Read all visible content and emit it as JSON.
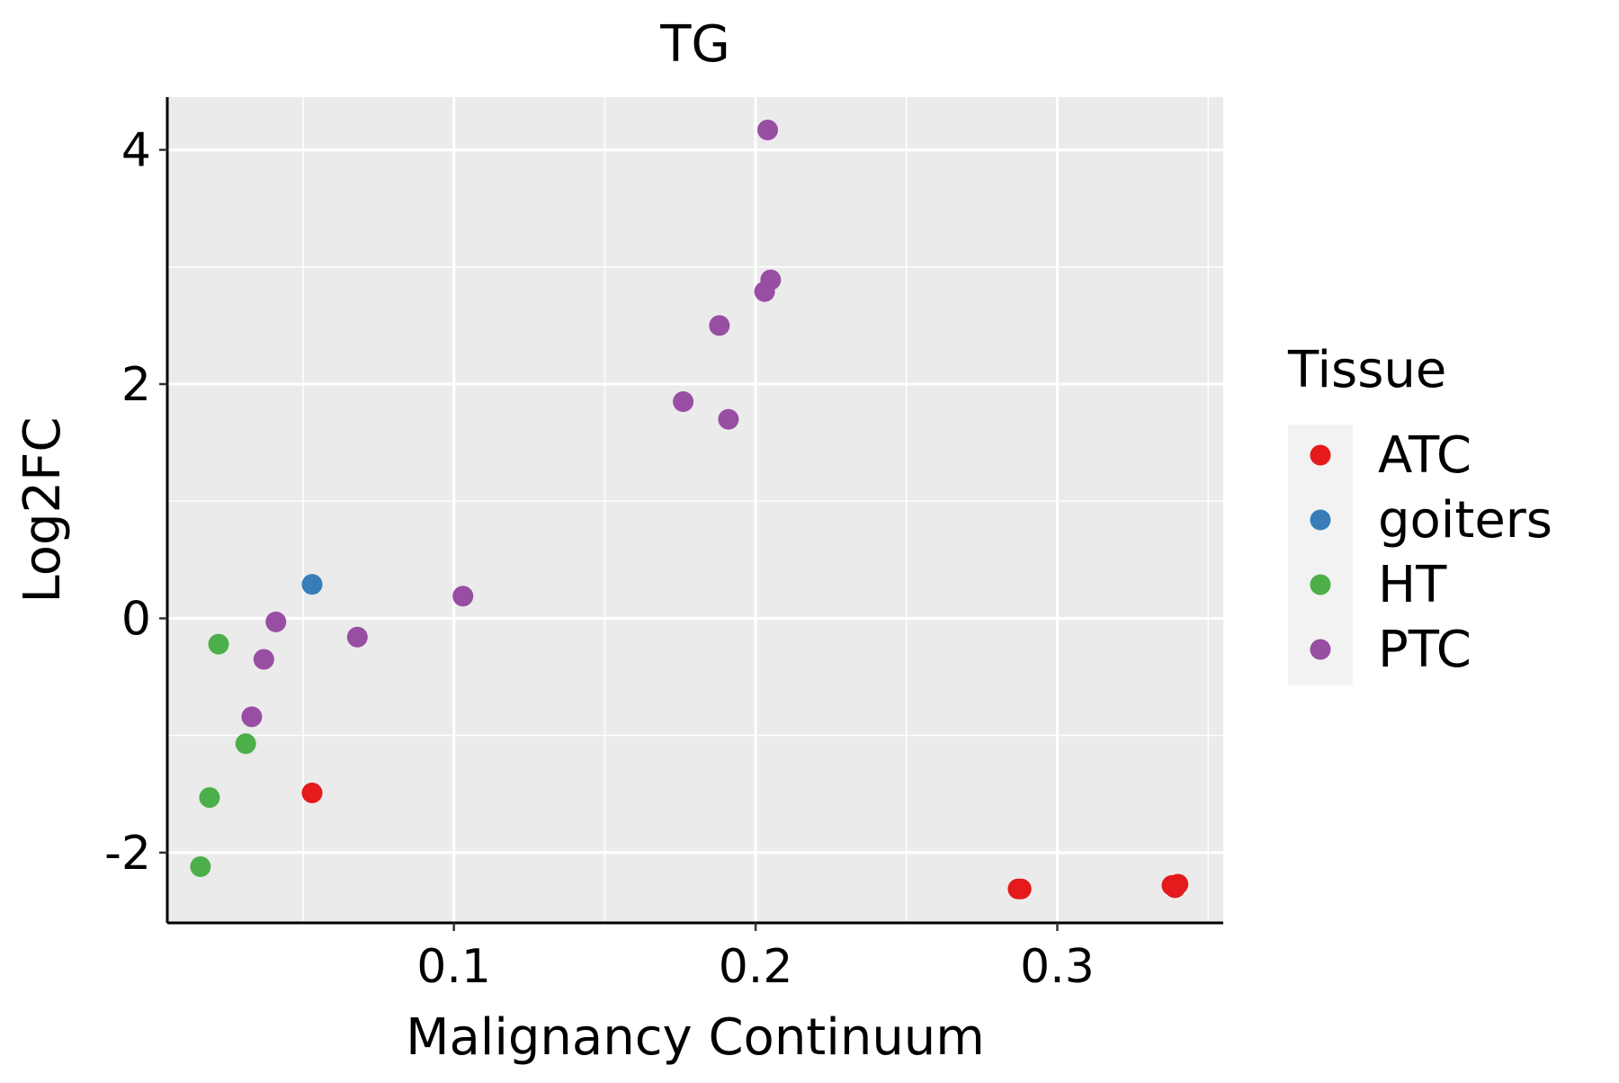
{
  "chart_data": {
    "type": "scatter",
    "title": "TG",
    "xlabel": "Malignancy Continuum",
    "ylabel": "Log2FC",
    "xlim": [
      0.005,
      0.355
    ],
    "ylim": [
      -2.6,
      4.45
    ],
    "x_ticks": [
      0.1,
      0.2,
      0.3
    ],
    "x_tick_labels": [
      "0.1",
      "0.2",
      "0.3"
    ],
    "y_ticks": [
      -2,
      0,
      2,
      4
    ],
    "y_tick_labels": [
      "-2",
      "0",
      "2",
      "4"
    ],
    "x_minor_ticks": [
      0.05,
      0.15,
      0.25,
      0.35
    ],
    "y_minor_ticks": [
      -1,
      1,
      3
    ],
    "grid": true,
    "panel_background": "#EBEBEB",
    "legend": {
      "title": "Tissue",
      "position": "right",
      "entries": [
        "ATC",
        "goiters",
        "HT",
        "PTC"
      ]
    },
    "colors": {
      "ATC": "#E41A1C",
      "goiters": "#377EB8",
      "HT": "#4DAF4A",
      "PTC": "#984EA3"
    },
    "series": [
      {
        "name": "ATC",
        "points": [
          {
            "x": 0.053,
            "y": -1.49
          },
          {
            "x": 0.287,
            "y": -2.31
          },
          {
            "x": 0.288,
            "y": -2.31
          },
          {
            "x": 0.338,
            "y": -2.28
          },
          {
            "x": 0.339,
            "y": -2.3
          },
          {
            "x": 0.34,
            "y": -2.27
          }
        ]
      },
      {
        "name": "goiters",
        "points": [
          {
            "x": 0.053,
            "y": 0.29
          }
        ]
      },
      {
        "name": "HT",
        "points": [
          {
            "x": 0.016,
            "y": -2.12
          },
          {
            "x": 0.019,
            "y": -1.53
          },
          {
            "x": 0.022,
            "y": -0.22
          },
          {
            "x": 0.031,
            "y": -1.07
          }
        ]
      },
      {
        "name": "PTC",
        "points": [
          {
            "x": 0.033,
            "y": -0.84
          },
          {
            "x": 0.037,
            "y": -0.35
          },
          {
            "x": 0.041,
            "y": -0.03
          },
          {
            "x": 0.068,
            "y": -0.16
          },
          {
            "x": 0.103,
            "y": 0.19
          },
          {
            "x": 0.176,
            "y": 1.85
          },
          {
            "x": 0.188,
            "y": 2.5
          },
          {
            "x": 0.191,
            "y": 1.7
          },
          {
            "x": 0.203,
            "y": 2.79
          },
          {
            "x": 0.204,
            "y": 4.17
          },
          {
            "x": 0.205,
            "y": 2.89
          }
        ]
      }
    ]
  }
}
